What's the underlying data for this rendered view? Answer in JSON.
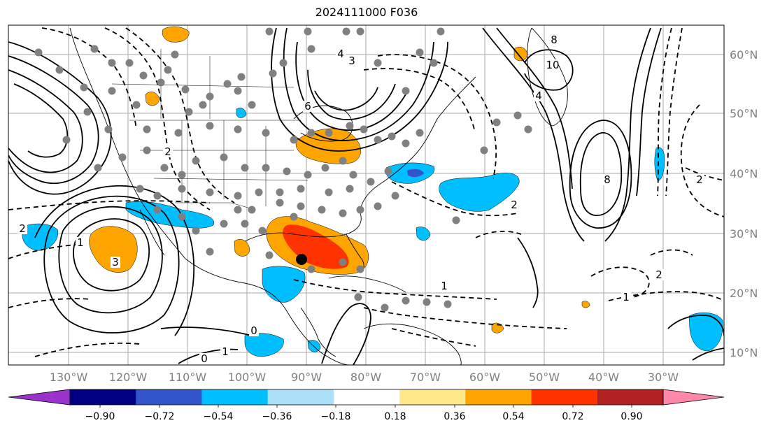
{
  "title": "2024111000 F036",
  "map": {
    "projection": "mercator",
    "lon_labels": [
      "130°W",
      "120°W",
      "110°W",
      "100°W",
      "90°W",
      "80°W",
      "70°W",
      "60°W",
      "50°W",
      "40°W",
      "30°W"
    ],
    "lat_labels": [
      "60°N",
      "50°N",
      "40°N",
      "30°N",
      "20°N",
      "10°N"
    ],
    "contour_labels": [
      "4",
      "3",
      "6",
      "8",
      "10",
      "4",
      "2",
      "2",
      "2",
      "2",
      "1",
      "1",
      "1",
      "3",
      "0",
      "1",
      "2",
      "0",
      "8"
    ],
    "colors": {
      "ocean_land": "#ffffff",
      "grid": "#a9a9a9",
      "contour": "#000000",
      "station_dot": "#808080",
      "storm_marker": "#000000"
    }
  },
  "colorbar": {
    "ticks": [
      "−0.90",
      "−0.72",
      "−0.54",
      "−0.36",
      "−0.18",
      "0.18",
      "0.36",
      "0.54",
      "0.72",
      "0.90"
    ],
    "colors": [
      "#9933cc",
      "#000080",
      "#3355cc",
      "#00bfff",
      "#aadff8",
      "#ffffff",
      "#ffe88a",
      "#ffa500",
      "#ff3300",
      "#b22222",
      "#ff88aa"
    ]
  }
}
